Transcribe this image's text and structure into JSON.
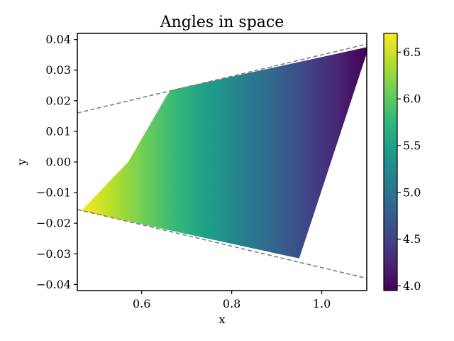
{
  "chart_data": {
    "type": "heatmap",
    "title": "Angles in space",
    "xlabel": "x",
    "ylabel": "y",
    "xlim": [
      0.457,
      1.1
    ],
    "ylim": [
      -0.042,
      0.042
    ],
    "x_ticks": [
      {
        "value": 0.6,
        "label": "0.6"
      },
      {
        "value": 0.8,
        "label": "0.8"
      },
      {
        "value": 1.0,
        "label": "1.0"
      }
    ],
    "y_ticks": [
      {
        "value": 0.04,
        "label": "0.04"
      },
      {
        "value": 0.03,
        "label": "0.03"
      },
      {
        "value": 0.02,
        "label": "0.02"
      },
      {
        "value": 0.01,
        "label": "0.01"
      },
      {
        "value": 0.0,
        "label": "0.00"
      },
      {
        "value": -0.01,
        "label": "−0.01"
      },
      {
        "value": -0.02,
        "label": "−0.02"
      },
      {
        "value": -0.03,
        "label": "−0.03"
      },
      {
        "value": -0.04,
        "label": "−0.04"
      }
    ],
    "colormap": "viridis",
    "colorbar": {
      "vmin": 3.95,
      "vmax": 6.7,
      "ticks": [
        {
          "value": 4.0,
          "label": "4.0"
        },
        {
          "value": 4.5,
          "label": "4.5"
        },
        {
          "value": 5.0,
          "label": "5.0"
        },
        {
          "value": 5.5,
          "label": "5.5"
        },
        {
          "value": 6.0,
          "label": "6.0"
        },
        {
          "value": 6.5,
          "label": "6.5"
        }
      ]
    },
    "dashed_lines": [
      {
        "name": "upper-boundary",
        "points": [
          [
            0.457,
            0.016
          ],
          [
            1.1,
            0.0385
          ]
        ],
        "color": "#808080"
      },
      {
        "name": "lower-boundary",
        "points": [
          [
            0.457,
            -0.0155
          ],
          [
            1.1,
            -0.038
          ]
        ],
        "color": "#808080"
      }
    ],
    "region": {
      "top_edge": [
        [
          0.465,
          -0.016
        ],
        [
          0.57,
          0.0
        ],
        [
          0.655,
          0.0215
        ],
        [
          0.665,
          0.0235
        ],
        [
          1.1,
          0.0375
        ]
      ],
      "right_edge": [
        [
          1.1,
          0.0375
        ],
        [
          1.1,
          0.0355
        ],
        [
          0.95,
          -0.0315
        ]
      ],
      "bottom_edge": [
        [
          0.95,
          -0.0315
        ],
        [
          0.465,
          -0.016
        ]
      ],
      "value_at_left": 6.65,
      "value_at_right": 3.97,
      "value_trend": "decreases linearly with x"
    }
  }
}
